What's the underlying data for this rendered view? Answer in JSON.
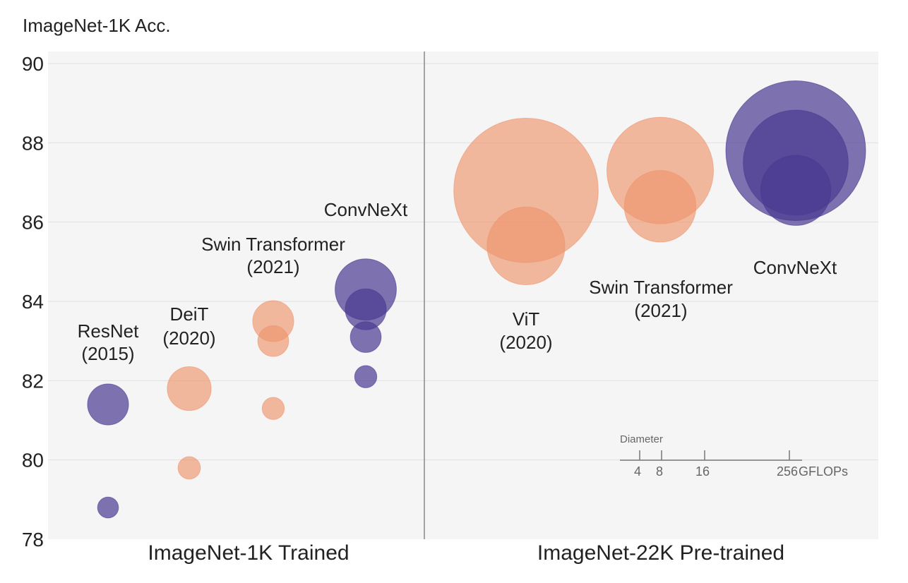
{
  "chart_data": {
    "type": "scatter",
    "title": "",
    "ylabel": "ImageNet-1K Acc.",
    "ylim": [
      78,
      90
    ],
    "yticks": [
      78,
      80,
      82,
      84,
      86,
      88,
      90
    ],
    "grid": true,
    "colors": {
      "transformer": "#ee956d",
      "convnet": "#4a3b91",
      "plot_bg": "#f5f5f5",
      "grid": "#e0e0e0",
      "divider": "#888888"
    },
    "panels": [
      {
        "label": "ImageNet-1K Trained",
        "groups": [
          {
            "name": "ResNet",
            "year": "(2015)",
            "kind": "convnet",
            "points": [
              {
                "acc": 78.8,
                "gflops": 4
              },
              {
                "acc": 81.4,
                "gflops": 15.4
              }
            ]
          },
          {
            "name": "DeiT",
            "year": "(2020)",
            "kind": "transformer",
            "points": [
              {
                "acc": 79.8,
                "gflops": 4.6
              },
              {
                "acc": 81.8,
                "gflops": 17.6
              }
            ]
          },
          {
            "name": "Swin Transformer",
            "year": "(2021)",
            "kind": "transformer",
            "points": [
              {
                "acc": 81.3,
                "gflops": 4.5
              },
              {
                "acc": 83.0,
                "gflops": 8.7
              },
              {
                "acc": 83.5,
                "gflops": 15.4
              }
            ]
          },
          {
            "name": "ConvNeXt",
            "year": "",
            "kind": "convnet",
            "points": [
              {
                "acc": 82.1,
                "gflops": 4.5
              },
              {
                "acc": 83.1,
                "gflops": 8.7
              },
              {
                "acc": 83.8,
                "gflops": 15.4
              },
              {
                "acc": 84.3,
                "gflops": 34.4
              }
            ]
          }
        ]
      },
      {
        "label": "ImageNet-22K Pre-trained",
        "groups": [
          {
            "name": "ViT",
            "year": "(2020)",
            "kind": "transformer",
            "points": [
              {
                "acc": 86.8,
                "gflops": 191
              },
              {
                "acc": 85.4,
                "gflops": 55.5
              }
            ]
          },
          {
            "name": "Swin Transformer",
            "year": "(2021)",
            "kind": "transformer",
            "points": [
              {
                "acc": 87.3,
                "gflops": 104
              },
              {
                "acc": 86.4,
                "gflops": 47
              }
            ]
          },
          {
            "name": "ConvNeXt",
            "year": "",
            "kind": "convnet",
            "points": [
              {
                "acc": 87.8,
                "gflops": 179
              },
              {
                "acc": 87.5,
                "gflops": 101
              },
              {
                "acc": 86.8,
                "gflops": 45.1
              }
            ]
          }
        ]
      }
    ],
    "size_legend": {
      "title": "Diameter",
      "ticks": [
        "4",
        "8",
        "16",
        "256"
      ],
      "unit": "GFLOPs"
    }
  }
}
